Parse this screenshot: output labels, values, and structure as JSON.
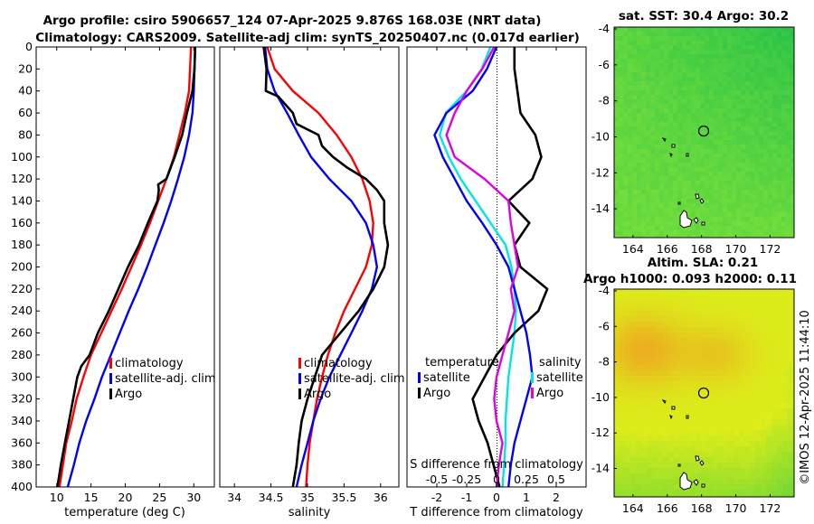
{
  "title_line1": "Argo profile: csiro 5906657_124 07-Apr-2025 9.876S 168.03E (NRT data)",
  "title_line2": "Climatology: CARS2009. Satellite-adj clim: synTS_20250407.nc (0.017d earlier)",
  "credit": "©IMOS 12-Apr-2025 11:44:10",
  "colors": {
    "climatology": "#ff0000",
    "satellite": "#0000ff",
    "argo": "#000000",
    "t_diff": "#00e5e5",
    "s_diff": "#e000e0"
  },
  "depth_axis": {
    "ticks": [
      0,
      20,
      40,
      60,
      80,
      100,
      120,
      140,
      160,
      180,
      200,
      220,
      240,
      260,
      280,
      300,
      320,
      340,
      360,
      380,
      400
    ],
    "range": [
      0,
      400
    ]
  },
  "chart_data": [
    {
      "id": "temperature",
      "type": "line",
      "xlabel": "temperature (deg C)",
      "xlim": [
        7,
        33
      ],
      "xticks": [
        "10",
        "15",
        "20",
        "25",
        "30"
      ],
      "xtick_values": [
        10,
        15,
        20,
        25,
        30
      ],
      "ylabel": "depth",
      "legend": [
        "climatology",
        "satellite-adj. clim",
        "Argo"
      ],
      "series": [
        {
          "name": "climatology",
          "depth": [
            0,
            40,
            60,
            80,
            100,
            120,
            140,
            160,
            180,
            200,
            220,
            240,
            260,
            280,
            300,
            320,
            340,
            360,
            380,
            400
          ],
          "values": [
            29.6,
            29.3,
            28.7,
            27.9,
            27.1,
            26.0,
            24.8,
            23.6,
            22.3,
            20.9,
            19.5,
            18.0,
            16.5,
            15.0,
            13.9,
            12.9,
            12.2,
            11.4,
            10.9,
            10.4
          ]
        },
        {
          "name": "satellite-adj. clim",
          "depth": [
            0,
            40,
            60,
            80,
            100,
            120,
            140,
            160,
            180,
            200,
            220,
            240,
            260,
            280,
            300,
            320,
            340,
            360,
            380,
            400
          ],
          "values": [
            30.2,
            30.0,
            29.8,
            29.3,
            28.6,
            27.7,
            26.7,
            25.6,
            24.4,
            23.2,
            21.9,
            20.5,
            19.2,
            17.9,
            16.6,
            15.5,
            14.3,
            13.3,
            12.5,
            11.6
          ]
        },
        {
          "name": "Argo",
          "depth": [
            0,
            20,
            40,
            60,
            80,
            100,
            120,
            125,
            130,
            140,
            160,
            180,
            200,
            220,
            240,
            260,
            280,
            290,
            300,
            320,
            340,
            360,
            380,
            400
          ],
          "values": [
            30.2,
            30.1,
            29.8,
            29.0,
            28.3,
            27.2,
            26.0,
            24.8,
            24.9,
            24.7,
            23.3,
            22.0,
            20.4,
            19.0,
            17.6,
            16.0,
            14.8,
            13.6,
            13.0,
            12.4,
            11.8,
            11.2,
            10.6,
            10.1
          ]
        }
      ]
    },
    {
      "id": "salinity",
      "type": "line",
      "xlabel": "salinity",
      "xlim": [
        33.8,
        36.25
      ],
      "xticks": [
        "34",
        "34.5",
        "35",
        "35.5",
        "36"
      ],
      "xtick_values": [
        34,
        34.5,
        35,
        35.5,
        36
      ],
      "legend": [
        "climatology",
        "satellite-adj. clim",
        "Argo"
      ],
      "series": [
        {
          "name": "climatology",
          "depth": [
            0,
            20,
            40,
            60,
            80,
            100,
            120,
            140,
            160,
            180,
            200,
            220,
            240,
            260,
            280,
            300,
            320,
            340,
            360,
            380,
            400
          ],
          "values": [
            34.45,
            34.55,
            34.8,
            35.15,
            35.4,
            35.6,
            35.75,
            35.85,
            35.9,
            35.88,
            35.8,
            35.65,
            35.5,
            35.38,
            35.28,
            35.2,
            35.13,
            35.08,
            35.03,
            35.0,
            34.98
          ]
        },
        {
          "name": "satellite-adj. clim",
          "depth": [
            0,
            20,
            40,
            60,
            80,
            100,
            120,
            140,
            160,
            180,
            200,
            220,
            240,
            260,
            280,
            300,
            320,
            340,
            360,
            380,
            400
          ],
          "values": [
            34.42,
            34.45,
            34.55,
            34.72,
            34.88,
            35.05,
            35.3,
            35.6,
            35.8,
            35.9,
            35.95,
            35.88,
            35.75,
            35.6,
            35.45,
            35.3,
            35.18,
            35.08,
            35.0,
            34.92,
            34.85
          ]
        },
        {
          "name": "Argo",
          "depth": [
            0,
            20,
            40,
            45,
            60,
            70,
            80,
            90,
            100,
            110,
            120,
            130,
            140,
            160,
            180,
            200,
            220,
            240,
            260,
            280,
            300,
            320,
            340,
            360,
            380,
            400
          ],
          "values": [
            34.4,
            34.44,
            34.43,
            34.6,
            34.8,
            34.85,
            35.15,
            35.2,
            35.35,
            35.55,
            35.8,
            35.95,
            36.05,
            36.05,
            36.1,
            36.05,
            35.9,
            35.7,
            35.45,
            35.2,
            35.1,
            35.0,
            34.92,
            34.88,
            34.85,
            34.8
          ]
        }
      ]
    },
    {
      "id": "difference",
      "type": "line",
      "xlabel": "T difference from climatology",
      "xlim": [
        -3.0,
        3.0
      ],
      "xticks": [
        "-2",
        "-1",
        "0",
        "1",
        "2"
      ],
      "xtick_values": [
        -2,
        -1,
        0,
        1,
        2
      ],
      "top_label": "S difference from climatology",
      "top_ticks": [
        "-0.5",
        "-0.25",
        "0",
        "0.25",
        "0.5"
      ],
      "legend_left_title": "temperature",
      "legend_right_title": "salinity",
      "legend": [
        "satellite",
        "Argo"
      ],
      "series": [
        {
          "name": "temperature satellite",
          "depth": [
            0,
            20,
            40,
            60,
            80,
            100,
            120,
            140,
            160,
            180,
            200,
            220,
            240,
            260,
            280,
            300,
            320,
            340,
            360,
            380,
            400
          ],
          "values": [
            -0.2,
            -0.5,
            -1.0,
            -1.7,
            -1.9,
            -1.6,
            -1.2,
            -0.7,
            -0.2,
            0.3,
            0.5,
            0.6,
            0.65,
            0.6,
            0.5,
            0.4,
            0.35,
            0.3,
            0.3,
            0.25,
            0.2
          ]
        },
        {
          "name": "temperature Argo",
          "depth": [
            0,
            20,
            40,
            60,
            80,
            100,
            120,
            140,
            160,
            180,
            200,
            220,
            240,
            260,
            280,
            300,
            320,
            340,
            360,
            380,
            400
          ],
          "values": [
            0.6,
            0.6,
            0.7,
            0.8,
            1.3,
            1.5,
            1.2,
            0.4,
            1.1,
            0.6,
            0.8,
            1.7,
            1.4,
            0.6,
            0.0,
            -0.4,
            -0.8,
            -0.6,
            -0.3,
            -0.1,
            0.1
          ]
        },
        {
          "name": "salinity satellite",
          "depth": [
            0,
            20,
            40,
            60,
            80,
            100,
            120,
            140,
            160,
            180,
            200,
            220,
            240,
            260,
            280,
            300,
            320,
            340,
            360,
            380,
            400
          ],
          "values": [
            0.0,
            -0.08,
            -0.2,
            -0.42,
            -0.52,
            -0.45,
            -0.35,
            -0.25,
            -0.12,
            0.0,
            0.1,
            0.15,
            0.2,
            0.25,
            0.28,
            0.3,
            0.25,
            0.2,
            0.15,
            0.12,
            0.1
          ]
        },
        {
          "name": "salinity Argo",
          "depth": [
            0,
            20,
            40,
            60,
            80,
            100,
            120,
            140,
            160,
            180,
            200,
            220,
            240,
            260,
            280,
            300,
            320,
            340,
            360,
            380,
            400
          ],
          "values": [
            -0.02,
            -0.12,
            -0.25,
            -0.35,
            -0.42,
            -0.35,
            -0.1,
            0.1,
            0.12,
            0.15,
            0.18,
            0.12,
            0.15,
            0.1,
            0.05,
            0.0,
            -0.02,
            0.0,
            0.05,
            0.02,
            0.0
          ]
        }
      ]
    },
    {
      "id": "sst_map",
      "type": "heatmap",
      "title": "sat. SST: 30.4 Argo: 30.2",
      "xlim": [
        162.9,
        173.4
      ],
      "ylim": [
        -15.6,
        -3.9
      ],
      "xticks": [
        "164",
        "166",
        "168",
        "170",
        "172"
      ],
      "xtick_values": [
        164,
        166,
        168,
        170,
        172
      ],
      "yticks": [
        "-4",
        "-6",
        "-8",
        "-10",
        "-12",
        "-14"
      ],
      "ytick_values": [
        -4,
        -6,
        -8,
        -10,
        -12,
        -14
      ],
      "marker": {
        "lon": 168.03,
        "lat": -9.876
      }
    },
    {
      "id": "sla_map",
      "type": "heatmap",
      "title": "Altim. SLA: 0.21",
      "subtitle": "Argo h1000: 0.093 h2000: 0.11",
      "xlim": [
        162.9,
        173.4
      ],
      "ylim": [
        -15.6,
        -3.9
      ],
      "xticks": [
        "164",
        "166",
        "168",
        "170",
        "172"
      ],
      "xtick_values": [
        164,
        166,
        168,
        170,
        172
      ],
      "yticks": [
        "-4",
        "-6",
        "-8",
        "-10",
        "-12",
        "-14"
      ],
      "ytick_values": [
        -4,
        -6,
        -8,
        -10,
        -12,
        -14
      ],
      "marker": {
        "lon": 168.03,
        "lat": -9.876
      }
    }
  ]
}
